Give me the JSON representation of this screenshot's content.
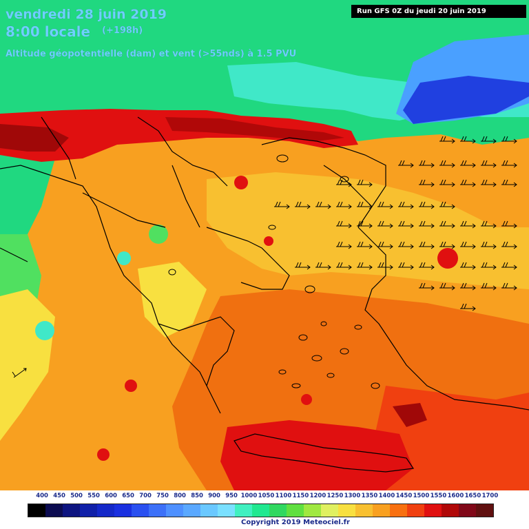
{
  "header": {
    "date_line": "vendredi 28 juin 2019",
    "time_line": "8:00 locale",
    "forecast_hour": "(+198h)",
    "parameter_line": "Altitude géopotentielle (dam) et vent (>55nds) à 1.5 PVU"
  },
  "run_info": "Run GFS 0Z du jeudi 20 juin 2019",
  "legend": {
    "values": [
      "400",
      "450",
      "500",
      "550",
      "600",
      "650",
      "700",
      "750",
      "800",
      "850",
      "900",
      "950",
      "1000",
      "1050",
      "1100",
      "1150",
      "1200",
      "1250",
      "1300",
      "1350",
      "1400",
      "1450",
      "1500",
      "1550",
      "1600",
      "1650",
      "1700"
    ],
    "colors": [
      "#000000",
      "#0b0b50",
      "#0d1480",
      "#1020a8",
      "#1428c8",
      "#1a30e0",
      "#2a50f0",
      "#3c70f8",
      "#4e90ff",
      "#5aa8ff",
      "#6ac8ff",
      "#7ae0ff",
      "#40f0c0",
      "#20e890",
      "#30d860",
      "#60e040",
      "#a0e840",
      "#e0f060",
      "#f8e040",
      "#f8c030",
      "#f8a020",
      "#f87010",
      "#f04010",
      "#e01010",
      "#b00808",
      "#800818",
      "#601010"
    ]
  },
  "copyright": "Copyright 2019 Meteociel.fr",
  "map": {
    "palette": {
      "blue_dark": "#2040e0",
      "blue": "#4aa0ff",
      "cyan": "#40e8c8",
      "green": "#20d880",
      "green_light": "#50e060",
      "yellow": "#f8e040",
      "yellow_orange": "#f8c030",
      "orange": "#f8a020",
      "orange_dark": "#f07010",
      "red_orange": "#f04010",
      "red": "#e01010",
      "dark_red": "#a00808",
      "brown": "#702010",
      "coast": "#000000"
    },
    "wind_arrow_rows": 9
  }
}
